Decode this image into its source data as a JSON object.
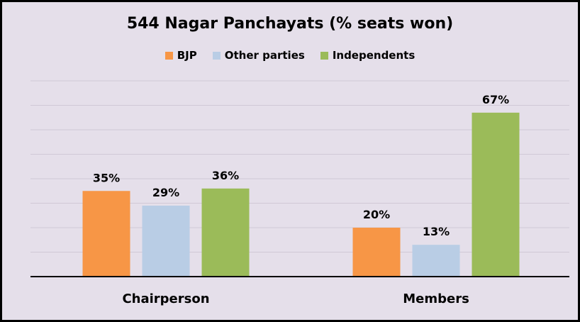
{
  "chart_data": {
    "type": "bar",
    "title": "544 Nagar Panchayats (% seats won)",
    "xlabel": "",
    "ylabel": "",
    "categories": [
      "Chairperson",
      "Members"
    ],
    "series": [
      {
        "name": "BJP",
        "color": "#F79646",
        "values": [
          35,
          20
        ],
        "labels": [
          "35%",
          "20%"
        ]
      },
      {
        "name": "Other parties",
        "color": "#B9CDE5",
        "values": [
          29,
          13
        ],
        "labels": [
          "29%",
          "13%"
        ]
      },
      {
        "name": "Independents",
        "color": "#9BBB59",
        "values": [
          36,
          67
        ],
        "labels": [
          "36%",
          "67%"
        ]
      }
    ],
    "ylim": [
      0,
      80
    ],
    "grid": true,
    "legend_position": "top"
  }
}
